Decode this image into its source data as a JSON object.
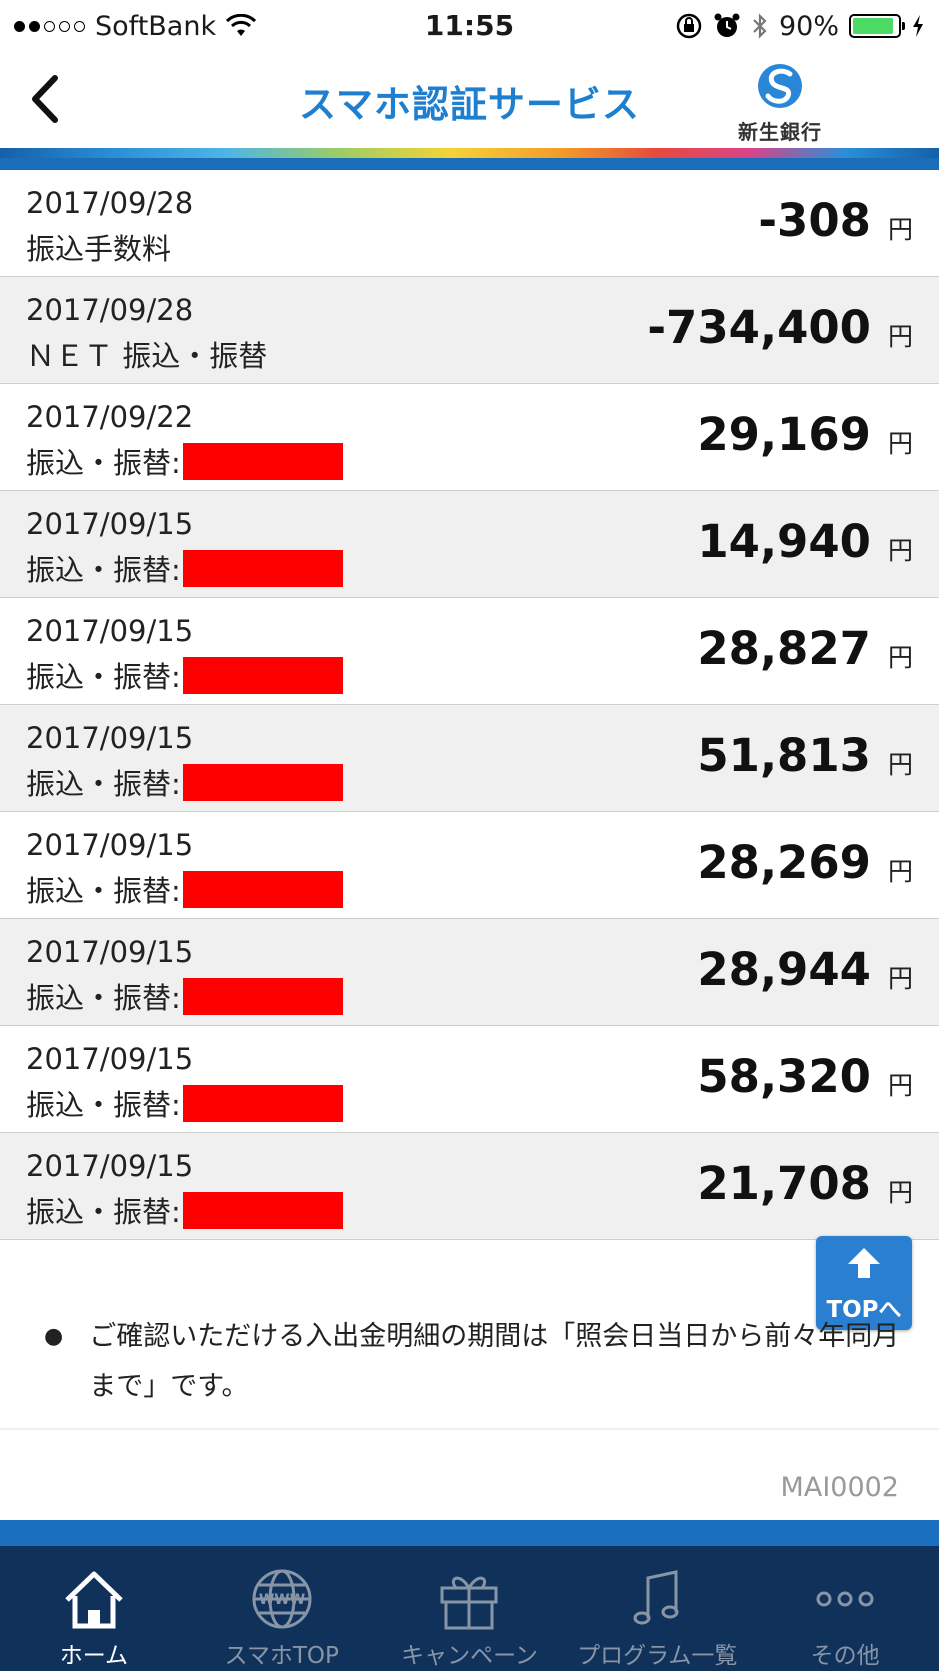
{
  "status_bar": {
    "carrier": "SoftBank",
    "time": "11:55",
    "battery": "90%",
    "battery_level": 0.9,
    "signal_bars": 2
  },
  "header": {
    "title": "スマホ認証サービス",
    "bank_name": "新生銀行"
  },
  "transactions": [
    {
      "date": "2017/09/28",
      "description": "振込手数料",
      "amount": "-308",
      "unit": "円",
      "redacted": false
    },
    {
      "date": "2017/09/28",
      "description": "ＮＥＴ 振込・振替",
      "amount": "-734,400",
      "unit": "円",
      "redacted": false
    },
    {
      "date": "2017/09/22",
      "description": "振込・振替:",
      "amount": "29,169",
      "unit": "円",
      "redacted": true
    },
    {
      "date": "2017/09/15",
      "description": "振込・振替:",
      "amount": "14,940",
      "unit": "円",
      "redacted": true
    },
    {
      "date": "2017/09/15",
      "description": "振込・振替:",
      "amount": "28,827",
      "unit": "円",
      "redacted": true
    },
    {
      "date": "2017/09/15",
      "description": "振込・振替:",
      "amount": "51,813",
      "unit": "円",
      "redacted": true
    },
    {
      "date": "2017/09/15",
      "description": "振込・振替:",
      "amount": "28,269",
      "unit": "円",
      "redacted": true
    },
    {
      "date": "2017/09/15",
      "description": "振込・振替:",
      "amount": "28,944",
      "unit": "円",
      "redacted": true
    },
    {
      "date": "2017/09/15",
      "description": "振込・振替:",
      "amount": "58,320",
      "unit": "円",
      "redacted": true
    },
    {
      "date": "2017/09/15",
      "description": "振込・振替:",
      "amount": "21,708",
      "unit": "円",
      "redacted": true
    }
  ],
  "note": "ご確認いただける入出金明細の期間は「照会日当日から前々年同月まで」です。",
  "page_code": "MAI0002",
  "top_button": {
    "label": "TOPへ"
  },
  "nav": [
    {
      "label": "ホーム",
      "icon": "home-icon",
      "active": true
    },
    {
      "label": "スマホTOP",
      "icon": "globe-www-icon",
      "active": false
    },
    {
      "label": "キャンペーン",
      "icon": "gift-icon",
      "active": false
    },
    {
      "label": "プログラム一覧",
      "icon": "music-note-icon",
      "active": false
    },
    {
      "label": "その他",
      "icon": "more-dots-icon",
      "active": false
    }
  ],
  "colors": {
    "title_blue": "#1e7fd0",
    "nav_bg": "#10325a",
    "band_blue": "#1a70bf",
    "redaction": "#ff0000"
  }
}
